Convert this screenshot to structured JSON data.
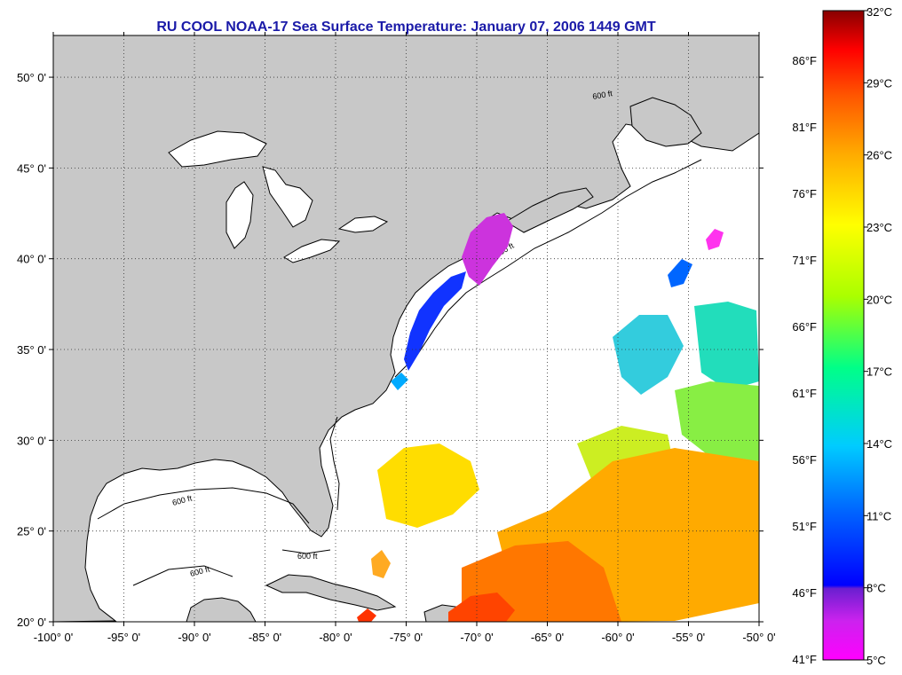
{
  "title": "RU COOL  NOAA-17  Sea Surface Temperature:  January 07, 2006 1449 GMT",
  "map": {
    "lon_range": [
      -100,
      -50
    ],
    "lat_range": [
      20,
      52.3
    ],
    "land_color": "#c8c8c8",
    "ocean_color": "#ffffff",
    "x_ticks": [
      {
        "v": -100,
        "label": "-100° 0'"
      },
      {
        "v": -95,
        "label": "-95° 0'"
      },
      {
        "v": -90,
        "label": "-90° 0'"
      },
      {
        "v": -85,
        "label": "-85° 0'"
      },
      {
        "v": -80,
        "label": "-80° 0'"
      },
      {
        "v": -75,
        "label": "-75° 0'"
      },
      {
        "v": -70,
        "label": "-70° 0'"
      },
      {
        "v": -65,
        "label": "-65° 0'"
      },
      {
        "v": -60,
        "label": "-60° 0'"
      },
      {
        "v": -55,
        "label": "-55° 0'"
      },
      {
        "v": -50,
        "label": "-50° 0'"
      }
    ],
    "y_ticks": [
      {
        "v": 20,
        "label": "20° 0'"
      },
      {
        "v": 25,
        "label": "25° 0'"
      },
      {
        "v": 30,
        "label": "30° 0'"
      },
      {
        "v": 35,
        "label": "35° 0'"
      },
      {
        "v": 40,
        "label": "40° 0'"
      },
      {
        "v": 45,
        "label": "45° 0'"
      },
      {
        "v": 50,
        "label": "50° 0'"
      }
    ],
    "isobath_labels": [
      "600 ft",
      "600 ft",
      "600 ft",
      "600 ft",
      "600 ft"
    ]
  },
  "colorbar": {
    "celsius": [
      {
        "v": 32,
        "label": "32°C"
      },
      {
        "v": 29,
        "label": "29°C"
      },
      {
        "v": 26,
        "label": "26°C"
      },
      {
        "v": 23,
        "label": "23°C"
      },
      {
        "v": 20,
        "label": "20°C"
      },
      {
        "v": 17,
        "label": "17°C"
      },
      {
        "v": 14,
        "label": "14°C"
      },
      {
        "v": 11,
        "label": "11°C"
      },
      {
        "v": 8,
        "label": "8°C"
      },
      {
        "v": 5,
        "label": "5°C"
      }
    ],
    "fahrenheit": [
      {
        "v": 86,
        "label": "86°F"
      },
      {
        "v": 81,
        "label": "81°F"
      },
      {
        "v": 76,
        "label": "76°F"
      },
      {
        "v": 71,
        "label": "71°F"
      },
      {
        "v": 66,
        "label": "66°F"
      },
      {
        "v": 61,
        "label": "61°F"
      },
      {
        "v": 56,
        "label": "56°F"
      },
      {
        "v": 51,
        "label": "51°F"
      },
      {
        "v": 46,
        "label": "46°F"
      },
      {
        "v": 41,
        "label": "41°F"
      }
    ],
    "colors": [
      "#ff00ff",
      "#6a1fd0",
      "#0000ff",
      "#0066ff",
      "#00ccff",
      "#00ff88",
      "#aaff00",
      "#ffff00",
      "#ffaa00",
      "#ff5500",
      "#ff0000",
      "#880000"
    ]
  }
}
